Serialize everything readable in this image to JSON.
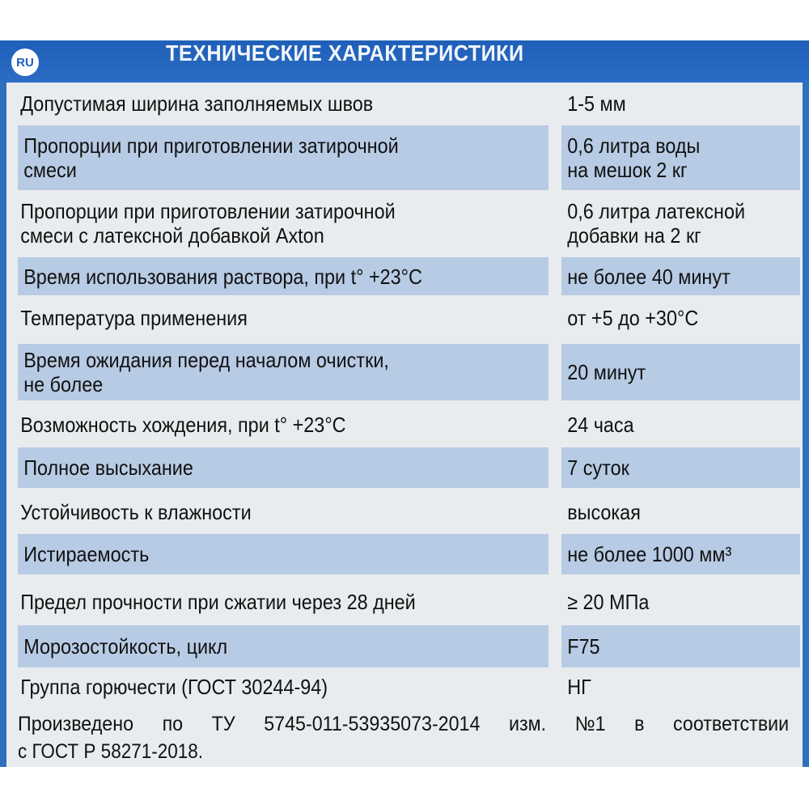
{
  "header": {
    "lang_badge": "RU",
    "title": "ТЕХНИЧЕСКИЕ ХАРАКТЕРИСТИКИ"
  },
  "rows": [
    {
      "label": [
        "Допустимая ширина заполняемых швов"
      ],
      "value": [
        "1-5 мм"
      ]
    },
    {
      "label": [
        "Пропорции при приготовлении затирочной",
        "смеси"
      ],
      "value": [
        "0,6 литра воды",
        "на мешок 2 кг"
      ]
    },
    {
      "label": [
        "Пропорции при приготовлении затирочной",
        "смеси с латексной добавкой Axton"
      ],
      "value": [
        "0,6 литра латексной",
        "добавки на 2 кг"
      ]
    },
    {
      "label": [
        "Время использования раствора, при t° +23°C"
      ],
      "value": [
        "не более 40 минут"
      ]
    },
    {
      "label": [
        "Температура применения"
      ],
      "value": [
        "от +5 до +30°C"
      ]
    },
    {
      "label": [
        "Время ожидания перед началом очистки,",
        "не более"
      ],
      "value": [
        "20 минут"
      ]
    },
    {
      "label": [
        "Возможность хождения, при t° +23°C"
      ],
      "value": [
        "24 часа"
      ]
    },
    {
      "label": [
        "Полное высыхание"
      ],
      "value": [
        "7 суток"
      ]
    },
    {
      "label": [
        "Устойчивость к влажности"
      ],
      "value": [
        "высокая"
      ]
    },
    {
      "label": [
        "Истираемость"
      ],
      "value": [
        "не более 1000 мм³"
      ]
    },
    {
      "label": [
        "Предел прочности при сжатии через 28 дней"
      ],
      "value": [
        "≥ 20 МПа"
      ]
    },
    {
      "label": [
        "Морозостойкость, цикл"
      ],
      "value": [
        "F75"
      ]
    },
    {
      "label": [
        "Группа горючести (ГОСТ 30244-94)"
      ],
      "value": [
        "НГ"
      ]
    }
  ],
  "footer": {
    "line1": [
      "Произведено",
      "по",
      "ТУ",
      "5745-011-53935073-2014",
      "изм.",
      "№1",
      "в",
      "соответствии"
    ],
    "line2": "с ГОСТ Р 58271-2018."
  },
  "colors": {
    "header_blue": "#1f5fb8",
    "row_shade": "#b7cbe4",
    "paper": "#e9ecee"
  }
}
